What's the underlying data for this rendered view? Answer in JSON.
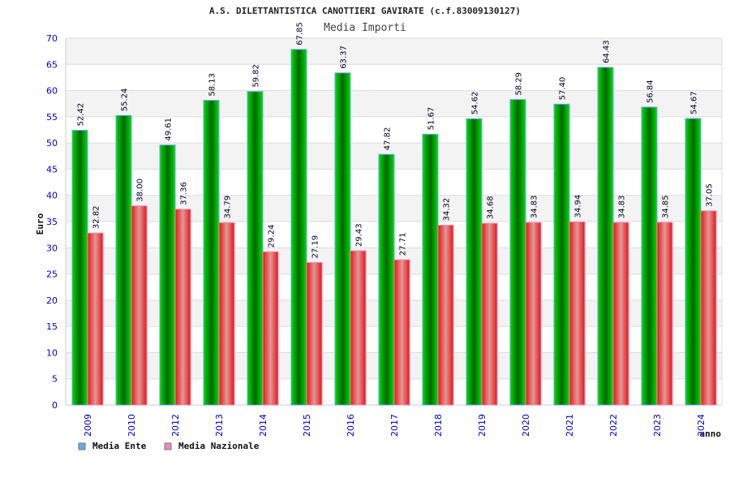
{
  "chart_data": {
    "type": "bar",
    "title": "A.S. DILETTANTISTICA CANOTTIERI GAVIRATE (c.f.83009130127)",
    "subtitle": "Media Importi",
    "xlabel": "anno",
    "ylabel": "Euro",
    "ylim": [
      0,
      70
    ],
    "yticks": [
      0,
      5,
      10,
      15,
      20,
      25,
      30,
      35,
      40,
      45,
      50,
      55,
      60,
      65,
      70
    ],
    "grid": true,
    "legend_position": "bottom-left",
    "categories": [
      "2009",
      "2010",
      "2012",
      "2013",
      "2014",
      "2015",
      "2016",
      "2017",
      "2018",
      "2019",
      "2020",
      "2021",
      "2022",
      "2023",
      "2024"
    ],
    "series": [
      {
        "name": "Media Ente",
        "color": "#00aa00",
        "legend_color": "#66aaee",
        "values": [
          52.42,
          55.24,
          49.61,
          58.13,
          59.82,
          67.85,
          63.37,
          47.82,
          51.67,
          54.62,
          58.29,
          57.4,
          64.43,
          56.84,
          54.67
        ],
        "labels": [
          "52.42",
          "55.24",
          "49.61",
          "58.13",
          "59.82",
          "67.85",
          "63.37",
          "47.82",
          "51.67",
          "54.62",
          "58.29",
          "57.40",
          "64.43",
          "56.84",
          "54.67"
        ]
      },
      {
        "name": "Media Nazionale",
        "color": "#ee2222",
        "legend_color": "#ee88bb",
        "values": [
          32.82,
          38.0,
          37.36,
          34.79,
          29.24,
          27.19,
          29.43,
          27.71,
          34.32,
          34.68,
          34.83,
          34.94,
          34.83,
          34.85,
          37.05
        ],
        "labels": [
          "32.82",
          "38.00",
          "37.36",
          "34.79",
          "29.24",
          "27.19",
          "29.43",
          "27.71",
          "34.32",
          "34.68",
          "34.83",
          "34.94",
          "34.83",
          "34.85",
          "37.05"
        ]
      }
    ]
  }
}
